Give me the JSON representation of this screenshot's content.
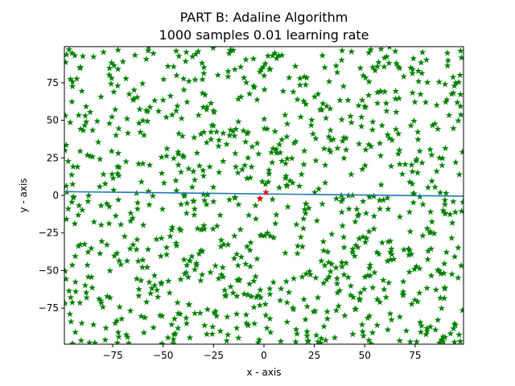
{
  "chart_data": {
    "type": "scatter",
    "title_line1": "PART B: Adaline Algorithm",
    "title_line2": "1000 samples 0.01 learning rate",
    "xlabel": "x - axis",
    "ylabel": "y - axis",
    "xlim": [
      -99,
      99
    ],
    "ylim": [
      -99,
      99
    ],
    "xticks": [
      -75,
      -50,
      -25,
      0,
      25,
      50,
      75
    ],
    "yticks": [
      -75,
      -50,
      -25,
      0,
      25,
      50,
      75
    ],
    "grid": false,
    "marker": "star",
    "colors": {
      "points": "#008000",
      "highlight": "#ff0000",
      "line": "#1f77b4"
    },
    "series": [
      {
        "sample_count": 1000,
        "seed": 1000
      }
    ],
    "highlight_points": [
      {
        "x": 1,
        "y": 2
      },
      {
        "x": -2,
        "y": -2
      }
    ],
    "line": {
      "x": [
        -99,
        99
      ],
      "y": [
        2.5,
        -0.5
      ]
    }
  }
}
